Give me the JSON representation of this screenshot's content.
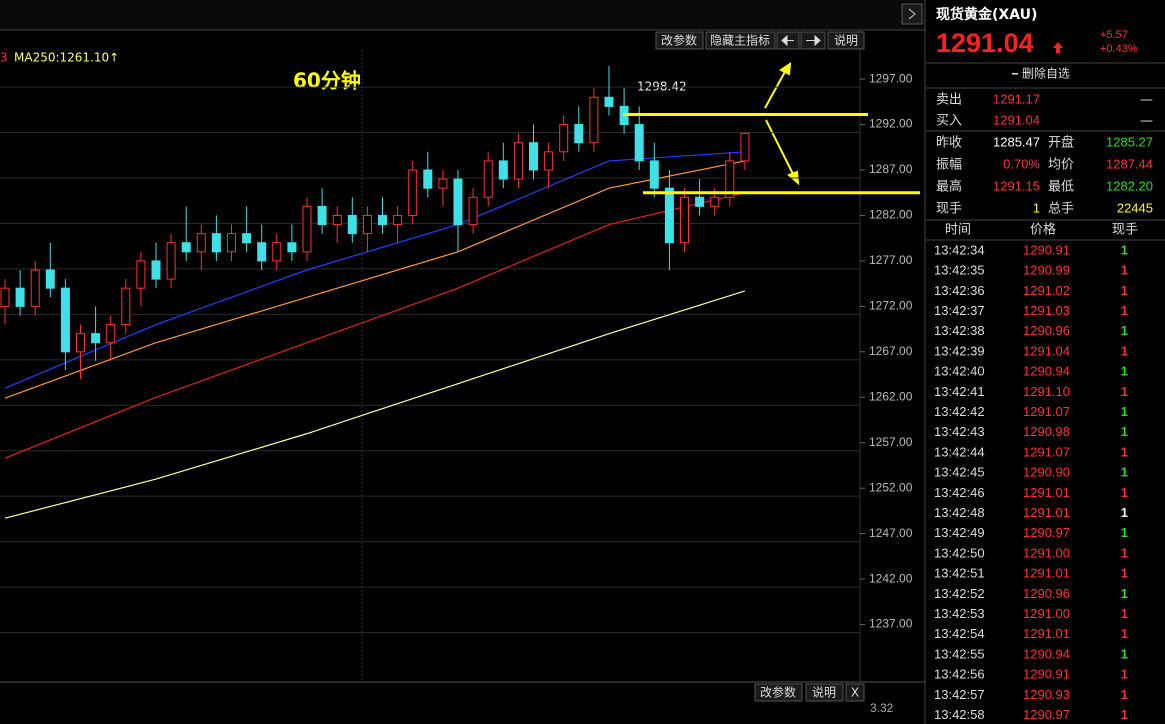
{
  "toolbar": {
    "buttons": [
      "改参数",
      "隐藏主指标"
    ],
    "help": "说明",
    "bottom_buttons": [
      "改参数",
      "说明",
      "X"
    ],
    "bottom_axis": "3.32"
  },
  "chart_data": {
    "type": "candlestick",
    "ma_label": "MA250:1261.10↑",
    "left_fragment": "3",
    "annotation": "60分钟",
    "high_label": "1298.42",
    "ylim": [
      1230.9,
      1300.2
    ],
    "yticks": [
      {
        "value": 1297,
        "label": "1297.00"
      },
      {
        "value": 1292,
        "label": "1292.00"
      },
      {
        "value": 1287,
        "label": "1287.00"
      },
      {
        "value": 1282,
        "label": "1282.00"
      },
      {
        "value": 1277,
        "label": "1277.00"
      },
      {
        "value": 1272,
        "label": "1272.00"
      },
      {
        "value": 1267,
        "label": "1267.00"
      },
      {
        "value": 1262,
        "label": "1262.00"
      },
      {
        "value": 1257,
        "label": "1257.00"
      },
      {
        "value": 1252,
        "label": "1252.00"
      },
      {
        "value": 1247,
        "label": "1247.00"
      },
      {
        "value": 1242,
        "label": "1242.00"
      },
      {
        "value": 1237,
        "label": "1237.00"
      }
    ],
    "up_color": "#ff3030",
    "down_color": "#3fe0e8",
    "candles": [
      [
        1272,
        1275,
        1270,
        1274
      ],
      [
        1274,
        1276,
        1271,
        1272
      ],
      [
        1272,
        1277,
        1271,
        1276
      ],
      [
        1276,
        1279,
        1273,
        1274
      ],
      [
        1274,
        1275,
        1265,
        1267
      ],
      [
        1267,
        1270,
        1264,
        1269
      ],
      [
        1269,
        1272,
        1266,
        1268
      ],
      [
        1268,
        1271,
        1266,
        1270
      ],
      [
        1270,
        1275,
        1269,
        1274
      ],
      [
        1274,
        1278,
        1272,
        1277
      ],
      [
        1277,
        1279,
        1274,
        1275
      ],
      [
        1275,
        1280,
        1274,
        1279
      ],
      [
        1279,
        1283,
        1277,
        1278
      ],
      [
        1278,
        1281,
        1276,
        1280
      ],
      [
        1280,
        1282,
        1277,
        1278
      ],
      [
        1278,
        1281,
        1277,
        1280
      ],
      [
        1280,
        1283,
        1278,
        1279
      ],
      [
        1279,
        1281,
        1276,
        1277
      ],
      [
        1277,
        1280,
        1276,
        1279
      ],
      [
        1279,
        1281,
        1277,
        1278
      ],
      [
        1278,
        1284,
        1277,
        1283
      ],
      [
        1283,
        1285,
        1280,
        1281
      ],
      [
        1281,
        1283,
        1279,
        1282
      ],
      [
        1282,
        1284,
        1279,
        1280
      ],
      [
        1280,
        1283,
        1278,
        1282
      ],
      [
        1282,
        1284,
        1280,
        1281
      ],
      [
        1281,
        1283,
        1279,
        1282
      ],
      [
        1282,
        1288,
        1281,
        1287
      ],
      [
        1287,
        1289,
        1284,
        1285
      ],
      [
        1285,
        1287,
        1283,
        1286
      ],
      [
        1286,
        1287,
        1278,
        1281
      ],
      [
        1281,
        1285,
        1280,
        1284
      ],
      [
        1284,
        1289,
        1283,
        1288
      ],
      [
        1288,
        1290,
        1285,
        1286
      ],
      [
        1286,
        1291,
        1285,
        1290
      ],
      [
        1290,
        1292,
        1286,
        1287
      ],
      [
        1287,
        1290,
        1285,
        1289
      ],
      [
        1289,
        1293,
        1288,
        1292
      ],
      [
        1292,
        1294,
        1289,
        1290
      ],
      [
        1290,
        1296,
        1289,
        1295
      ],
      [
        1295,
        1298.42,
        1293,
        1294
      ],
      [
        1294,
        1296,
        1291,
        1292
      ],
      [
        1292,
        1294,
        1287,
        1288
      ],
      [
        1288,
        1290,
        1284,
        1285
      ],
      [
        1285,
        1287,
        1276,
        1279
      ],
      [
        1279,
        1285,
        1278,
        1284
      ],
      [
        1284,
        1286,
        1282,
        1283
      ],
      [
        1283,
        1285,
        1282,
        1284
      ],
      [
        1284,
        1289,
        1283,
        1288
      ],
      [
        1288,
        1291.15,
        1287,
        1291.04
      ]
    ],
    "ma_index": [
      0,
      10,
      20,
      30,
      40,
      49
    ],
    "ma_series": [
      {
        "color": "#ffff99",
        "values": [
          1248.7,
          1253,
          1258,
          1263.5,
          1269,
          1273.7
        ]
      },
      {
        "color": "#e02020",
        "values": [
          1255.3,
          1262,
          1268,
          1274,
          1281,
          1284.5
        ]
      },
      {
        "color": "#ff9a30",
        "values": [
          1261.9,
          1268,
          1273,
          1278,
          1285,
          1288
        ]
      },
      {
        "color": "#2040ff",
        "values": [
          1263,
          1270,
          1276,
          1281,
          1288,
          1289
        ]
      }
    ],
    "level_color": "#ffff00",
    "levels": [
      1293.1,
      1284.5
    ]
  },
  "quote": {
    "title": "现货黄金(XAU)",
    "price": "1291.04",
    "change": "+5.57",
    "change_pct": "+0.43%",
    "remove": "删除自选",
    "rows": [
      [
        [
          "卖出",
          "1291.17",
          "#ff3030"
        ],
        [
          "—",
          "",
          "#ddd"
        ]
      ],
      [
        [
          "买入",
          "1291.04",
          "#ff3030"
        ],
        [
          "—",
          "",
          "#ddd"
        ]
      ]
    ],
    "stats": [
      [
        [
          "昨收",
          "1285.47",
          "#ffffff"
        ],
        [
          "开盘",
          "1285.27",
          "#20e020"
        ]
      ],
      [
        [
          "振幅",
          "0.70%",
          "#ff3030"
        ],
        [
          "均价",
          "1287.44",
          "#ff3030"
        ]
      ],
      [
        [
          "最高",
          "1291.15",
          "#ff3030"
        ],
        [
          "最低",
          "1282.20",
          "#20e020"
        ]
      ],
      [
        [
          "现手",
          "1",
          "#ffff00"
        ],
        [
          "总手",
          "22445",
          "#ffff00"
        ]
      ]
    ]
  },
  "trades": {
    "header": [
      "时间",
      "价格",
      "现手"
    ],
    "rows": [
      [
        "13:42:34",
        "1290.91",
        "1",
        "#20e020"
      ],
      [
        "13:42:35",
        "1290.99",
        "1",
        "#ff3030"
      ],
      [
        "13:42:36",
        "1291.02",
        "1",
        "#ff3030"
      ],
      [
        "13:42:37",
        "1291.03",
        "1",
        "#ff3030"
      ],
      [
        "13:42:38",
        "1290.96",
        "1",
        "#20e020"
      ],
      [
        "13:42:39",
        "1291.04",
        "1",
        "#ff3030"
      ],
      [
        "13:42:40",
        "1290.94",
        "1",
        "#20e020"
      ],
      [
        "13:42:41",
        "1291.10",
        "1",
        "#ff3030"
      ],
      [
        "13:42:42",
        "1291.07",
        "1",
        "#20e020"
      ],
      [
        "13:42:43",
        "1290.98",
        "1",
        "#20e020"
      ],
      [
        "13:42:44",
        "1291.07",
        "1",
        "#ff3030"
      ],
      [
        "13:42:45",
        "1290.90",
        "1",
        "#20e020"
      ],
      [
        "13:42:46",
        "1291.01",
        "1",
        "#ff3030"
      ],
      [
        "13:42:48",
        "1291.01",
        "1",
        "#ffffff"
      ],
      [
        "13:42:49",
        "1290.97",
        "1",
        "#20e020"
      ],
      [
        "13:42:50",
        "1291.00",
        "1",
        "#ff3030"
      ],
      [
        "13:42:51",
        "1291.01",
        "1",
        "#ff3030"
      ],
      [
        "13:42:52",
        "1290.96",
        "1",
        "#20e020"
      ],
      [
        "13:42:53",
        "1291.00",
        "1",
        "#ff3030"
      ],
      [
        "13:42:54",
        "1291.01",
        "1",
        "#ff3030"
      ],
      [
        "13:42:55",
        "1290.94",
        "1",
        "#20e020"
      ],
      [
        "13:42:56",
        "1290.91",
        "1",
        "#ff3030"
      ],
      [
        "13:42:57",
        "1290.93",
        "1",
        "#ff3030"
      ],
      [
        "13:42:58",
        "1290.97",
        "1",
        "#ff3030"
      ]
    ]
  }
}
